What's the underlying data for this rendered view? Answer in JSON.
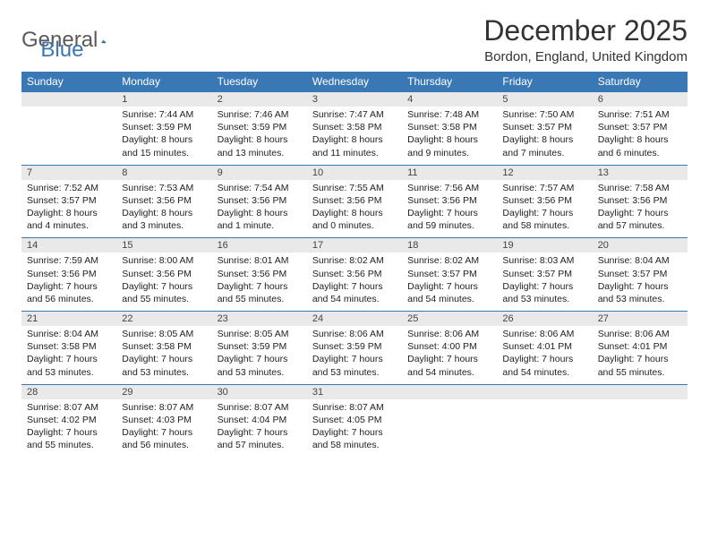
{
  "logo": {
    "text1": "General",
    "text2": "Blue",
    "triangle_color": "#3a78b5"
  },
  "title": "December 2025",
  "location": "Bordon, England, United Kingdom",
  "header_bg": "#3a78b5",
  "header_text_color": "#ffffff",
  "border_color": "#3a78b5",
  "daynum_bg": "#e9e9e9",
  "day_headers": [
    "Sunday",
    "Monday",
    "Tuesday",
    "Wednesday",
    "Thursday",
    "Friday",
    "Saturday"
  ],
  "weeks": [
    [
      null,
      {
        "n": "1",
        "sr": "7:44 AM",
        "ss": "3:59 PM",
        "dl": "8 hours and 15 minutes."
      },
      {
        "n": "2",
        "sr": "7:46 AM",
        "ss": "3:59 PM",
        "dl": "8 hours and 13 minutes."
      },
      {
        "n": "3",
        "sr": "7:47 AM",
        "ss": "3:58 PM",
        "dl": "8 hours and 11 minutes."
      },
      {
        "n": "4",
        "sr": "7:48 AM",
        "ss": "3:58 PM",
        "dl": "8 hours and 9 minutes."
      },
      {
        "n": "5",
        "sr": "7:50 AM",
        "ss": "3:57 PM",
        "dl": "8 hours and 7 minutes."
      },
      {
        "n": "6",
        "sr": "7:51 AM",
        "ss": "3:57 PM",
        "dl": "8 hours and 6 minutes."
      }
    ],
    [
      {
        "n": "7",
        "sr": "7:52 AM",
        "ss": "3:57 PM",
        "dl": "8 hours and 4 minutes."
      },
      {
        "n": "8",
        "sr": "7:53 AM",
        "ss": "3:56 PM",
        "dl": "8 hours and 3 minutes."
      },
      {
        "n": "9",
        "sr": "7:54 AM",
        "ss": "3:56 PM",
        "dl": "8 hours and 1 minute."
      },
      {
        "n": "10",
        "sr": "7:55 AM",
        "ss": "3:56 PM",
        "dl": "8 hours and 0 minutes."
      },
      {
        "n": "11",
        "sr": "7:56 AM",
        "ss": "3:56 PM",
        "dl": "7 hours and 59 minutes."
      },
      {
        "n": "12",
        "sr": "7:57 AM",
        "ss": "3:56 PM",
        "dl": "7 hours and 58 minutes."
      },
      {
        "n": "13",
        "sr": "7:58 AM",
        "ss": "3:56 PM",
        "dl": "7 hours and 57 minutes."
      }
    ],
    [
      {
        "n": "14",
        "sr": "7:59 AM",
        "ss": "3:56 PM",
        "dl": "7 hours and 56 minutes."
      },
      {
        "n": "15",
        "sr": "8:00 AM",
        "ss": "3:56 PM",
        "dl": "7 hours and 55 minutes."
      },
      {
        "n": "16",
        "sr": "8:01 AM",
        "ss": "3:56 PM",
        "dl": "7 hours and 55 minutes."
      },
      {
        "n": "17",
        "sr": "8:02 AM",
        "ss": "3:56 PM",
        "dl": "7 hours and 54 minutes."
      },
      {
        "n": "18",
        "sr": "8:02 AM",
        "ss": "3:57 PM",
        "dl": "7 hours and 54 minutes."
      },
      {
        "n": "19",
        "sr": "8:03 AM",
        "ss": "3:57 PM",
        "dl": "7 hours and 53 minutes."
      },
      {
        "n": "20",
        "sr": "8:04 AM",
        "ss": "3:57 PM",
        "dl": "7 hours and 53 minutes."
      }
    ],
    [
      {
        "n": "21",
        "sr": "8:04 AM",
        "ss": "3:58 PM",
        "dl": "7 hours and 53 minutes."
      },
      {
        "n": "22",
        "sr": "8:05 AM",
        "ss": "3:58 PM",
        "dl": "7 hours and 53 minutes."
      },
      {
        "n": "23",
        "sr": "8:05 AM",
        "ss": "3:59 PM",
        "dl": "7 hours and 53 minutes."
      },
      {
        "n": "24",
        "sr": "8:06 AM",
        "ss": "3:59 PM",
        "dl": "7 hours and 53 minutes."
      },
      {
        "n": "25",
        "sr": "8:06 AM",
        "ss": "4:00 PM",
        "dl": "7 hours and 54 minutes."
      },
      {
        "n": "26",
        "sr": "8:06 AM",
        "ss": "4:01 PM",
        "dl": "7 hours and 54 minutes."
      },
      {
        "n": "27",
        "sr": "8:06 AM",
        "ss": "4:01 PM",
        "dl": "7 hours and 55 minutes."
      }
    ],
    [
      {
        "n": "28",
        "sr": "8:07 AM",
        "ss": "4:02 PM",
        "dl": "7 hours and 55 minutes."
      },
      {
        "n": "29",
        "sr": "8:07 AM",
        "ss": "4:03 PM",
        "dl": "7 hours and 56 minutes."
      },
      {
        "n": "30",
        "sr": "8:07 AM",
        "ss": "4:04 PM",
        "dl": "7 hours and 57 minutes."
      },
      {
        "n": "31",
        "sr": "8:07 AM",
        "ss": "4:05 PM",
        "dl": "7 hours and 58 minutes."
      },
      null,
      null,
      null
    ]
  ],
  "labels": {
    "sunrise": "Sunrise:",
    "sunset": "Sunset:",
    "daylight": "Daylight:"
  }
}
